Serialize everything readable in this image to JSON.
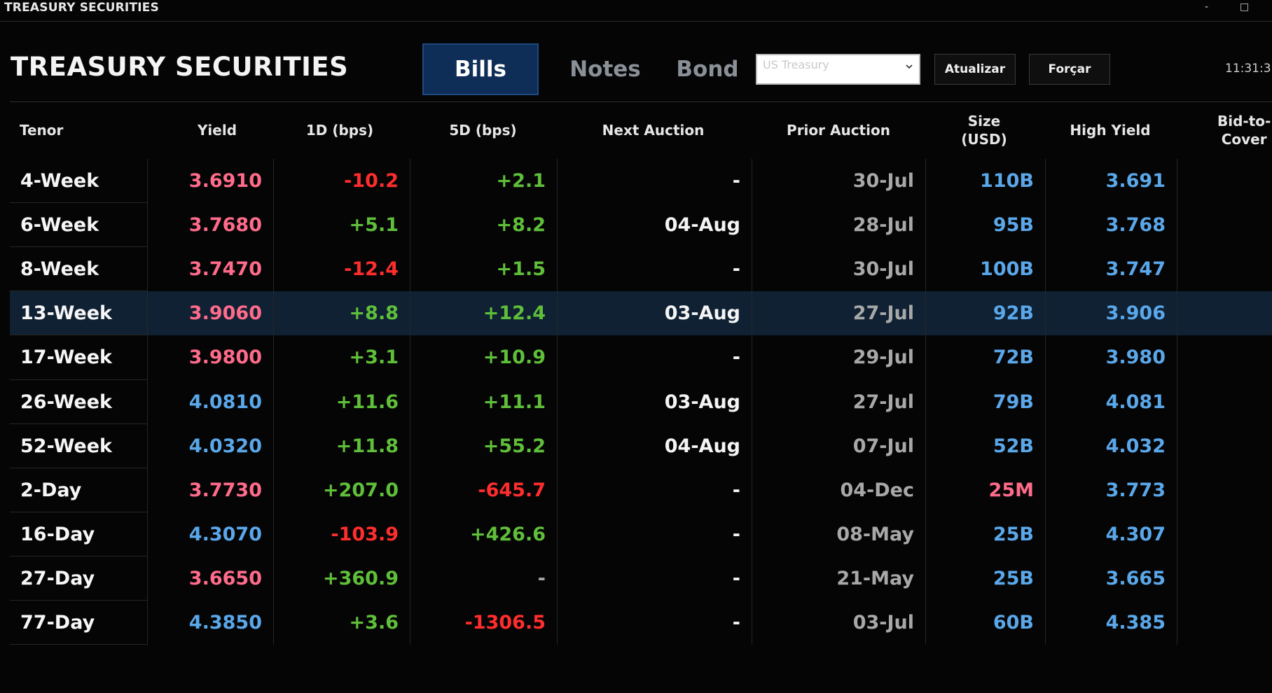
{
  "window": {
    "title": "TREASURY SECURITIES",
    "minimize_glyph": "-",
    "maximize_glyph": "□"
  },
  "header": {
    "title": "TREASURY SECURITIES",
    "tabs": [
      {
        "label": "Bills",
        "active": true
      },
      {
        "label": "Notes",
        "active": false
      },
      {
        "label": "Bond",
        "active": false
      }
    ],
    "select": {
      "value": "US Treasury",
      "icon": "chevron-down-icon"
    },
    "refresh_label": "Atualizar",
    "force_label": "Forçar",
    "clock": "11:31:3"
  },
  "table": {
    "columns": [
      "Tenor",
      "Yield",
      "1D (bps)",
      "5D (bps)",
      "Next Auction",
      "Prior Auction",
      "Size\n(USD)",
      "High Yield",
      "Bid-to-\nCover"
    ],
    "highlighted_row": 3,
    "rows": [
      {
        "tenor": "4-Week",
        "yield": "3.6910",
        "yield_color": "pink",
        "d1": "-10.2",
        "d1_color": "red",
        "d5": "+2.1",
        "d5_color": "green",
        "next": "-",
        "prior": "30-Jul",
        "size": "110B",
        "size_color": "blue",
        "high_yield": "3.691"
      },
      {
        "tenor": "6-Week",
        "yield": "3.7680",
        "yield_color": "pink",
        "d1": "+5.1",
        "d1_color": "green",
        "d5": "+8.2",
        "d5_color": "green",
        "next": "04-Aug",
        "prior": "28-Jul",
        "size": "95B",
        "size_color": "blue",
        "high_yield": "3.768"
      },
      {
        "tenor": "8-Week",
        "yield": "3.7470",
        "yield_color": "pink",
        "d1": "-12.4",
        "d1_color": "red",
        "d5": "+1.5",
        "d5_color": "green",
        "next": "-",
        "prior": "30-Jul",
        "size": "100B",
        "size_color": "blue",
        "high_yield": "3.747"
      },
      {
        "tenor": "13-Week",
        "yield": "3.9060",
        "yield_color": "pink",
        "d1": "+8.8",
        "d1_color": "green",
        "d5": "+12.4",
        "d5_color": "green",
        "next": "03-Aug",
        "prior": "27-Jul",
        "size": "92B",
        "size_color": "blue",
        "high_yield": "3.906"
      },
      {
        "tenor": "17-Week",
        "yield": "3.9800",
        "yield_color": "pink",
        "d1": "+3.1",
        "d1_color": "green",
        "d5": "+10.9",
        "d5_color": "green",
        "next": "-",
        "prior": "29-Jul",
        "size": "72B",
        "size_color": "blue",
        "high_yield": "3.980"
      },
      {
        "tenor": "26-Week",
        "yield": "4.0810",
        "yield_color": "blue",
        "d1": "+11.6",
        "d1_color": "green",
        "d5": "+11.1",
        "d5_color": "green",
        "next": "03-Aug",
        "prior": "27-Jul",
        "size": "79B",
        "size_color": "blue",
        "high_yield": "4.081"
      },
      {
        "tenor": "52-Week",
        "yield": "4.0320",
        "yield_color": "blue",
        "d1": "+11.8",
        "d1_color": "green",
        "d5": "+55.2",
        "d5_color": "green",
        "next": "04-Aug",
        "prior": "07-Jul",
        "size": "52B",
        "size_color": "blue",
        "high_yield": "4.032"
      },
      {
        "tenor": "2-Day",
        "yield": "3.7730",
        "yield_color": "pink",
        "d1": "+207.0",
        "d1_color": "green",
        "d5": "-645.7",
        "d5_color": "red",
        "next": "-",
        "prior": "04-Dec",
        "size": "25M",
        "size_color": "pink",
        "high_yield": "3.773"
      },
      {
        "tenor": "16-Day",
        "yield": "4.3070",
        "yield_color": "blue",
        "d1": "-103.9",
        "d1_color": "red",
        "d5": "+426.6",
        "d5_color": "green",
        "next": "-",
        "prior": "08-May",
        "size": "25B",
        "size_color": "blue",
        "high_yield": "4.307"
      },
      {
        "tenor": "27-Day",
        "yield": "3.6650",
        "yield_color": "pink",
        "d1": "+360.9",
        "d1_color": "green",
        "d5": "-",
        "d5_color": "gray",
        "next": "-",
        "prior": "21-May",
        "size": "25B",
        "size_color": "blue",
        "high_yield": "3.665"
      },
      {
        "tenor": "77-Day",
        "yield": "4.3850",
        "yield_color": "blue",
        "d1": "+3.6",
        "d1_color": "green",
        "d5": "-1306.5",
        "d5_color": "red",
        "next": "-",
        "prior": "03-Jul",
        "size": "60B",
        "size_color": "blue",
        "high_yield": "4.385"
      }
    ]
  }
}
